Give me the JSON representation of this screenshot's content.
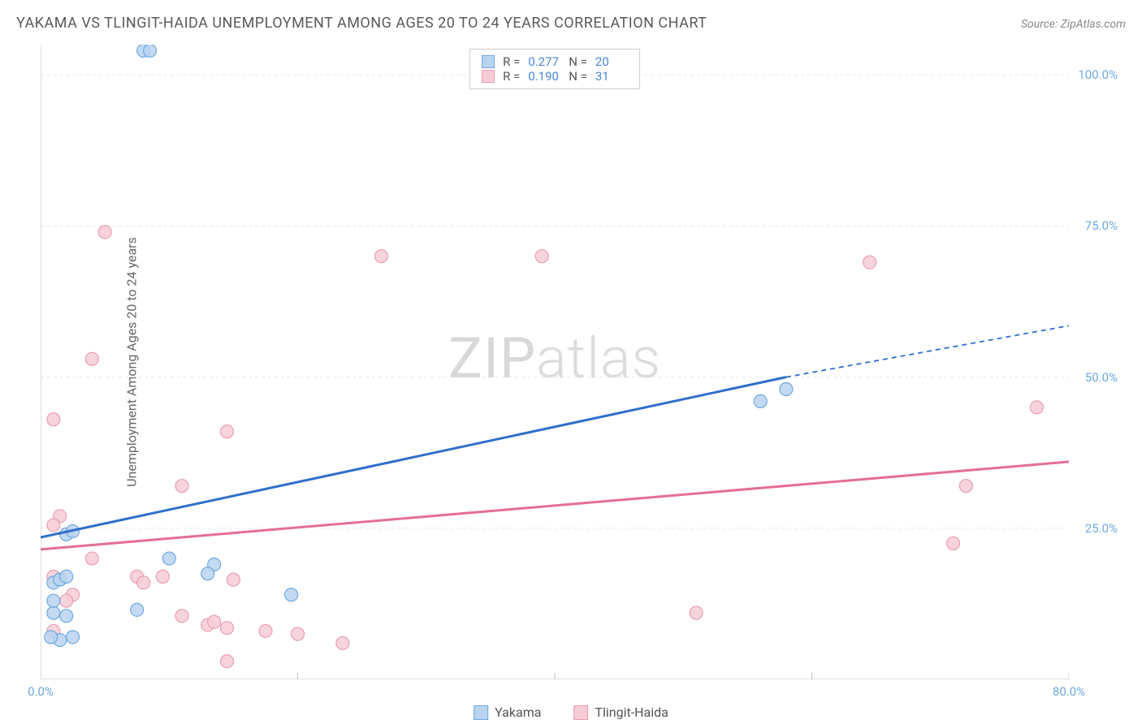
{
  "header": {
    "title": "YAKAMA VS TLINGIT-HAIDA UNEMPLOYMENT AMONG AGES 20 TO 24 YEARS CORRELATION CHART",
    "source": "Source: ZipAtlas.com"
  },
  "y_axis_label": "Unemployment Among Ages 20 to 24 years",
  "watermark_parts": {
    "bold": "ZIP",
    "thin": "atlas"
  },
  "chart": {
    "type": "scatter",
    "xlim": [
      0,
      80
    ],
    "ylim": [
      0,
      105
    ],
    "x_ticks": [
      {
        "pos": 0,
        "label": "0.0%"
      },
      {
        "pos": 80,
        "label": "80.0%"
      }
    ],
    "x_minor_ticks": [
      20,
      40,
      60
    ],
    "y_ticks": [
      {
        "pos": 25,
        "label": "25.0%"
      },
      {
        "pos": 50,
        "label": "50.0%"
      },
      {
        "pos": 75,
        "label": "75.0%"
      },
      {
        "pos": 100,
        "label": "100.0%"
      }
    ],
    "grid_color": "#e8e8e8",
    "axis_color": "#bfbfbf",
    "background_color": "#ffffff",
    "series": [
      {
        "name": "Yakama",
        "fill": "#b9d4f0",
        "stroke": "#6ea8e0",
        "marker_radius": 8,
        "points": [
          [
            8.0,
            104.0
          ],
          [
            8.5,
            104.0
          ],
          [
            56.0,
            46.0
          ],
          [
            58.0,
            48.0
          ],
          [
            2.0,
            24.0
          ],
          [
            2.5,
            24.5
          ],
          [
            1.0,
            16.0
          ],
          [
            1.5,
            16.5
          ],
          [
            2.0,
            17.0
          ],
          [
            10.0,
            20.0
          ],
          [
            13.5,
            19.0
          ],
          [
            13.0,
            17.5
          ],
          [
            7.5,
            11.5
          ],
          [
            1.0,
            11.0
          ],
          [
            2.0,
            10.5
          ],
          [
            19.5,
            14.0
          ],
          [
            1.0,
            13.0
          ],
          [
            2.5,
            7.0
          ],
          [
            1.5,
            6.5
          ],
          [
            0.8,
            7.0
          ]
        ],
        "trend": {
          "x1": 0,
          "y1": 23.5,
          "x2": 58,
          "y2": 50.0,
          "dash_x1": 58,
          "dash_y1": 50.0,
          "dash_x2": 80,
          "dash_y2": 58.5,
          "color": "#2f6fc9",
          "width": 3
        },
        "stats": {
          "R": "0.277",
          "N": "20"
        }
      },
      {
        "name": "Tlingit-Haida",
        "fill": "#f6cdd7",
        "stroke": "#ea9db2",
        "marker_radius": 8,
        "points": [
          [
            5.0,
            74.0
          ],
          [
            26.5,
            70.0
          ],
          [
            39.0,
            70.0
          ],
          [
            64.5,
            69.0
          ],
          [
            4.0,
            53.0
          ],
          [
            77.5,
            45.0
          ],
          [
            14.5,
            41.0
          ],
          [
            1.0,
            43.0
          ],
          [
            11.0,
            32.0
          ],
          [
            72.0,
            32.0
          ],
          [
            1.5,
            27.0
          ],
          [
            1.0,
            25.5
          ],
          [
            71.0,
            22.5
          ],
          [
            4.0,
            20.0
          ],
          [
            7.5,
            17.0
          ],
          [
            9.5,
            17.0
          ],
          [
            1.0,
            17.0
          ],
          [
            8.0,
            16.0
          ],
          [
            15.0,
            16.5
          ],
          [
            2.5,
            14.0
          ],
          [
            2.0,
            13.0
          ],
          [
            11.0,
            10.5
          ],
          [
            51.0,
            11.0
          ],
          [
            13.0,
            9.0
          ],
          [
            13.5,
            9.5
          ],
          [
            14.5,
            8.5
          ],
          [
            17.5,
            8.0
          ],
          [
            20.0,
            7.5
          ],
          [
            23.5,
            6.0
          ],
          [
            14.5,
            3.0
          ],
          [
            1.0,
            8.0
          ]
        ],
        "trend": {
          "x1": 0,
          "y1": 21.5,
          "x2": 80,
          "y2": 36.0,
          "color": "#e46f92",
          "width": 3
        },
        "stats": {
          "R": "0.190",
          "N": "31"
        }
      }
    ]
  },
  "legend": {
    "items": [
      {
        "label": "Yakama",
        "fill": "#b9d4f0",
        "stroke": "#6ea8e0"
      },
      {
        "label": "Tlingit-Haida",
        "fill": "#f6cdd7",
        "stroke": "#ea9db2"
      }
    ]
  },
  "stat_labels": {
    "R": "R =",
    "N": "N ="
  }
}
